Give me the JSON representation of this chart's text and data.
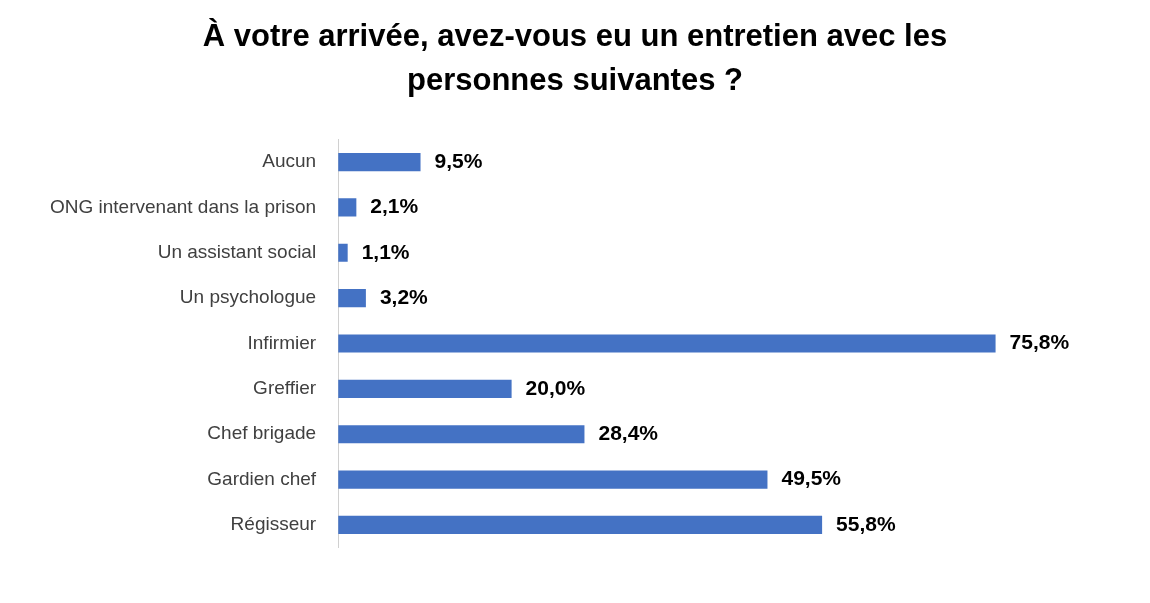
{
  "chart_data": {
    "type": "bar",
    "orientation": "horizontal",
    "title": "À votre arrivée, avez-vous eu un entretien avec les personnes suivantes ?",
    "categories": [
      "Aucun",
      "ONG intervenant dans la prison",
      "Un assistant social",
      "Un psychologue",
      "Infirmier",
      "Greffier",
      "Chef brigade",
      "Gardien chef",
      "Régisseur"
    ],
    "values": [
      9.5,
      2.1,
      1.1,
      3.2,
      75.8,
      20.0,
      28.4,
      49.5,
      55.8
    ],
    "value_labels": [
      "9,5%",
      "2,1%",
      "1,1%",
      "3,2%",
      "75,8%",
      "20,0%",
      "28,4%",
      "49,5%",
      "55,8%"
    ],
    "color": "#4472c4",
    "legend": false
  }
}
